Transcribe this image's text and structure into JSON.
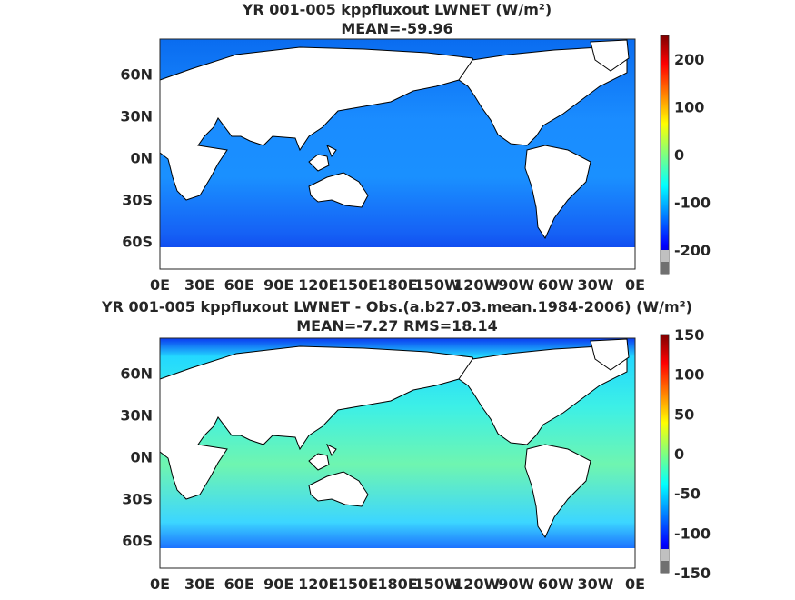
{
  "colors": {
    "land": "#ffffff",
    "coast": "#000000",
    "colormap": [
      "#00007f",
      "#0000ff",
      "#007fff",
      "#00ffff",
      "#7fff7f",
      "#ffff00",
      "#ff7f00",
      "#ff0000",
      "#7f0000"
    ]
  },
  "chart_data": [
    {
      "type": "heatmap",
      "title": "YR 001-005 kppfluxout  LWNET (W/m²)",
      "subtitle": "MEAN=-59.96",
      "xticks": [
        "0E",
        "30E",
        "60E",
        "90E",
        "120E",
        "150E",
        "180E",
        "150W",
        "120W",
        "90W",
        "60W",
        "30W",
        "0E"
      ],
      "yticks": [
        "60N",
        "30N",
        "0N",
        "30S",
        "60S"
      ],
      "ylim": [
        -80,
        85
      ],
      "xlim": [
        0,
        360
      ],
      "colorbar": {
        "min": -250,
        "max": 250,
        "ticks": [
          "200",
          "100",
          "0",
          "-100",
          "-200"
        ]
      },
      "ocean_fill_dominant": -90
    },
    {
      "type": "heatmap",
      "title": "YR 001-005 kppfluxout LWNET - Obs.(a.b27.03.mean.1984-2006) (W/m²)",
      "subtitle": "MEAN=-7.27 RMS=18.14",
      "xticks": [
        "0E",
        "30E",
        "60E",
        "90E",
        "120E",
        "150E",
        "180E",
        "150W",
        "120W",
        "90W",
        "60W",
        "30W",
        "0E"
      ],
      "yticks": [
        "60N",
        "30N",
        "0N",
        "30S",
        "60S"
      ],
      "ylim": [
        -80,
        85
      ],
      "xlim": [
        0,
        360
      ],
      "colorbar": {
        "min": -150,
        "max": 150,
        "ticks": [
          "150",
          "100",
          "50",
          "0",
          "-50",
          "-100",
          "-150"
        ]
      },
      "ocean_fill_dominant": -10
    }
  ]
}
